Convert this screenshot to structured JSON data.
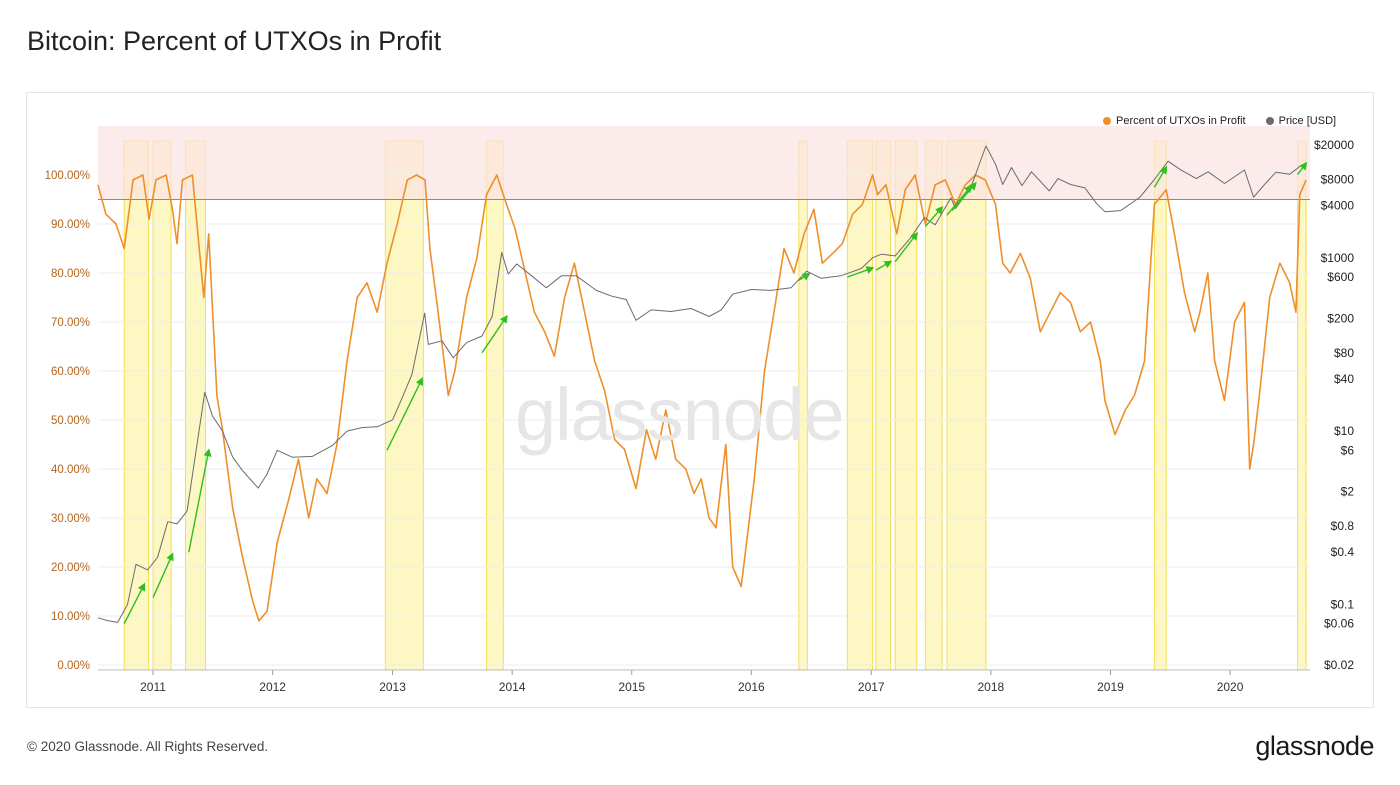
{
  "title": "Bitcoin: Percent of UTXOs in Profit",
  "footer": "© 2020 Glassnode. All Rights Reserved.",
  "brand": "glassnode",
  "watermark": "glassnode",
  "colors": {
    "utxo": "#ef8f2a",
    "price": "#6b6b6b",
    "band_fill": "#fbe3e3",
    "band_line": "#e06a5a",
    "highlight_fill": "#fdf6b8",
    "highlight_stroke": "#f5de4d",
    "arrow": "#2fbf1f",
    "left_axis_text": "#b5651d"
  },
  "chart_data": {
    "type": "line",
    "title": "Bitcoin: Percent of UTXOs in Profit",
    "legend_position": "top-right",
    "legend": [
      "Percent of UTXOs in Profit",
      "Price [USD]"
    ],
    "x_range": [
      "2010-07-17",
      "2020-09-01"
    ],
    "x_ticks": [
      "2011",
      "2012",
      "2013",
      "2014",
      "2015",
      "2016",
      "2017",
      "2018",
      "2019",
      "2020"
    ],
    "y_left": {
      "label": "",
      "range": [
        0,
        100
      ],
      "ticks": [
        "0.00%",
        "10.00%",
        "20.00%",
        "30.00%",
        "40.00%",
        "50.00%",
        "60.00%",
        "70.00%",
        "80.00%",
        "90.00%",
        "100.00%"
      ]
    },
    "y_right": {
      "label": "",
      "scale": "log",
      "range": [
        0.02,
        20000
      ],
      "ticks": [
        "$0.02",
        "$0.06",
        "$0.1",
        "$0.4",
        "$0.8",
        "$2",
        "$6",
        "$10",
        "$40",
        "$80",
        "$200",
        "$600",
        "$1000",
        "$4000",
        "$8000",
        "$20000"
      ],
      "tick_values": [
        0.02,
        0.06,
        0.1,
        0.4,
        0.8,
        2,
        6,
        10,
        40,
        80,
        200,
        600,
        1000,
        4000,
        8000,
        20000
      ]
    },
    "threshold_band": {
      "from": 95,
      "to": 109
    },
    "highlight_periods": [
      [
        "2010-10-05",
        "2010-12-18"
      ],
      [
        "2011-01-01",
        "2011-02-25"
      ],
      [
        "2011-04-10",
        "2011-06-10"
      ],
      [
        "2012-12-10",
        "2013-04-05"
      ],
      [
        "2013-10-15",
        "2013-12-05"
      ],
      [
        "2016-05-25",
        "2016-06-20"
      ],
      [
        "2016-10-20",
        "2017-01-05"
      ],
      [
        "2017-01-15",
        "2017-03-01"
      ],
      [
        "2017-03-15",
        "2017-05-20"
      ],
      [
        "2017-06-15",
        "2017-08-05"
      ],
      [
        "2017-08-20",
        "2017-12-17"
      ],
      [
        "2019-05-15",
        "2019-06-20"
      ],
      [
        "2020-07-25",
        "2020-08-20"
      ]
    ],
    "series": [
      {
        "name": "Percent of UTXOs in Profit",
        "axis": "left",
        "x": [
          "2010-07-17",
          "2010-08-10",
          "2010-09-10",
          "2010-10-05",
          "2010-11-01",
          "2010-12-01",
          "2010-12-20",
          "2011-01-10",
          "2011-02-10",
          "2011-03-01",
          "2011-03-15",
          "2011-04-01",
          "2011-05-01",
          "2011-06-05",
          "2011-06-20",
          "2011-07-15",
          "2011-08-01",
          "2011-09-01",
          "2011-10-01",
          "2011-11-01",
          "2011-11-20",
          "2011-12-15",
          "2012-01-15",
          "2012-02-20",
          "2012-03-20",
          "2012-04-20",
          "2012-05-15",
          "2012-06-15",
          "2012-07-15",
          "2012-08-15",
          "2012-09-15",
          "2012-10-15",
          "2012-11-15",
          "2012-12-15",
          "2013-01-15",
          "2013-02-15",
          "2013-03-15",
          "2013-04-10",
          "2013-04-25",
          "2013-05-20",
          "2013-06-20",
          "2013-07-10",
          "2013-08-15",
          "2013-09-15",
          "2013-10-15",
          "2013-11-15",
          "2013-12-10",
          "2014-01-10",
          "2014-02-10",
          "2014-03-10",
          "2014-04-10",
          "2014-05-10",
          "2014-06-10",
          "2014-07-10",
          "2014-08-10",
          "2014-09-10",
          "2014-10-10",
          "2014-11-10",
          "2014-12-10",
          "2015-01-14",
          "2015-02-15",
          "2015-03-15",
          "2015-04-15",
          "2015-05-15",
          "2015-06-15",
          "2015-07-10",
          "2015-08-01",
          "2015-08-25",
          "2015-09-15",
          "2015-10-15",
          "2015-11-05",
          "2015-12-01",
          "2016-01-10",
          "2016-02-10",
          "2016-03-10",
          "2016-04-10",
          "2016-05-10",
          "2016-06-10",
          "2016-07-10",
          "2016-08-05",
          "2016-09-05",
          "2016-10-05",
          "2016-11-05",
          "2016-12-05",
          "2017-01-05",
          "2017-01-20",
          "2017-02-15",
          "2017-03-20",
          "2017-04-15",
          "2017-05-15",
          "2017-06-15",
          "2017-07-15",
          "2017-08-15",
          "2017-09-15",
          "2017-10-15",
          "2017-11-15",
          "2017-12-15",
          "2018-01-15",
          "2018-02-06",
          "2018-03-01",
          "2018-04-01",
          "2018-05-01",
          "2018-06-01",
          "2018-07-01",
          "2018-08-01",
          "2018-09-01",
          "2018-10-01",
          "2018-11-01",
          "2018-12-01",
          "2018-12-15",
          "2019-01-15",
          "2019-02-15",
          "2019-03-15",
          "2019-04-15",
          "2019-05-15",
          "2019-06-20",
          "2019-07-15",
          "2019-08-15",
          "2019-09-15",
          "2019-10-01",
          "2019-10-25",
          "2019-11-15",
          "2019-12-15",
          "2020-01-15",
          "2020-02-14",
          "2020-03-01",
          "2020-03-13",
          "2020-04-01",
          "2020-05-01",
          "2020-06-01",
          "2020-07-01",
          "2020-07-20",
          "2020-08-01",
          "2020-08-20"
        ],
        "values": [
          98,
          92,
          90,
          85,
          99,
          100,
          91,
          99,
          100,
          93,
          86,
          99,
          100,
          75,
          88,
          55,
          48,
          32,
          22,
          13,
          9,
          11,
          25,
          34,
          42,
          30,
          38,
          35,
          45,
          62,
          75,
          78,
          72,
          82,
          90,
          99,
          100,
          99,
          85,
          72,
          55,
          60,
          75,
          83,
          96,
          100,
          95,
          89,
          80,
          72,
          68,
          63,
          75,
          82,
          72,
          62,
          56,
          46,
          44,
          36,
          48,
          42,
          52,
          42,
          40,
          35,
          38,
          30,
          28,
          45,
          20,
          16,
          38,
          60,
          72,
          85,
          80,
          88,
          93,
          82,
          84,
          86,
          92,
          94,
          100,
          96,
          98,
          88,
          97,
          100,
          90,
          98,
          99,
          94,
          98,
          100,
          99,
          94,
          82,
          80,
          84,
          79,
          68,
          72,
          76,
          74,
          68,
          70,
          62,
          54,
          47,
          52,
          55,
          62,
          94,
          97,
          88,
          76,
          68,
          72,
          80,
          62,
          54,
          70,
          74,
          40,
          45,
          56,
          75,
          82,
          78,
          72,
          96,
          99
        ]
      },
      {
        "name": "Price [USD]",
        "axis": "right",
        "x": [
          "2010-07-17",
          "2010-08-15",
          "2010-09-15",
          "2010-10-15",
          "2010-11-10",
          "2010-12-15",
          "2011-01-15",
          "2011-02-15",
          "2011-03-15",
          "2011-04-15",
          "2011-05-15",
          "2011-06-08",
          "2011-07-01",
          "2011-08-01",
          "2011-09-01",
          "2011-10-01",
          "2011-11-18",
          "2011-12-15",
          "2012-01-15",
          "2012-03-01",
          "2012-05-01",
          "2012-07-01",
          "2012-08-15",
          "2012-10-01",
          "2012-11-15",
          "2013-01-01",
          "2013-02-01",
          "2013-03-01",
          "2013-04-09",
          "2013-04-20",
          "2013-06-01",
          "2013-07-05",
          "2013-08-15",
          "2013-10-01",
          "2013-11-01",
          "2013-11-30",
          "2013-12-20",
          "2014-01-15",
          "2014-03-01",
          "2014-04-15",
          "2014-06-01",
          "2014-07-15",
          "2014-09-15",
          "2014-11-01",
          "2014-12-15",
          "2015-01-14",
          "2015-03-01",
          "2015-05-01",
          "2015-07-01",
          "2015-08-25",
          "2015-10-01",
          "2015-11-05",
          "2016-01-01",
          "2016-03-01",
          "2016-05-01",
          "2016-06-18",
          "2016-08-01",
          "2016-10-01",
          "2016-12-01",
          "2017-01-05",
          "2017-02-01",
          "2017-03-15",
          "2017-05-01",
          "2017-06-12",
          "2017-07-15",
          "2017-09-01",
          "2017-09-15",
          "2017-11-01",
          "2017-12-17",
          "2018-01-15",
          "2018-02-06",
          "2018-03-05",
          "2018-04-06",
          "2018-05-05",
          "2018-06-28",
          "2018-07-25",
          "2018-09-01",
          "2018-10-15",
          "2018-11-20",
          "2018-12-15",
          "2019-02-01",
          "2019-04-01",
          "2019-05-15",
          "2019-06-26",
          "2019-08-01",
          "2019-09-20",
          "2019-10-26",
          "2019-12-15",
          "2020-02-14",
          "2020-03-13",
          "2020-04-15",
          "2020-05-20",
          "2020-07-01",
          "2020-08-01",
          "2020-08-20"
        ],
        "values": [
          0.07,
          0.065,
          0.062,
          0.1,
          0.29,
          0.25,
          0.35,
          0.9,
          0.85,
          1.2,
          7,
          28,
          15,
          10,
          5,
          3.5,
          2.2,
          3.2,
          6,
          5,
          5.1,
          6.8,
          10,
          11,
          11.2,
          13.5,
          25,
          45,
          230,
          100,
          110,
          70,
          105,
          125,
          210,
          1150,
          650,
          850,
          620,
          450,
          620,
          620,
          420,
          360,
          330,
          190,
          250,
          240,
          260,
          210,
          250,
          380,
          430,
          420,
          450,
          700,
          580,
          620,
          750,
          1000,
          1100,
          1050,
          1700,
          2900,
          2400,
          4900,
          3700,
          6500,
          19500,
          12000,
          7000,
          11000,
          6800,
          9800,
          5900,
          8200,
          7000,
          6400,
          4200,
          3400,
          3500,
          5000,
          8000,
          13000,
          10500,
          8200,
          9800,
          7200,
          10300,
          5000,
          7000,
          9700,
          9200,
          11300,
          11900
        ]
      }
    ],
    "annotations": {
      "arrows": [
        {
          "from": [
            "2010-10-05",
            0.06
          ],
          "to": [
            "2010-12-05",
            0.17
          ]
        },
        {
          "from": [
            "2011-01-01",
            0.12
          ],
          "to": [
            "2011-03-01",
            0.38
          ]
        },
        {
          "from": [
            "2011-04-20",
            0.4
          ],
          "to": [
            "2011-06-20",
            6
          ]
        },
        {
          "from": [
            "2012-12-15",
            6
          ],
          "to": [
            "2013-04-01",
            40
          ]
        },
        {
          "from": [
            "2013-10-01",
            80
          ],
          "to": [
            "2013-12-15",
            210
          ]
        },
        {
          "from": [
            "2016-05-25",
            550
          ],
          "to": [
            "2016-06-25",
            650
          ]
        },
        {
          "from": [
            "2016-10-20",
            600
          ],
          "to": [
            "2017-01-05",
            760
          ]
        },
        {
          "from": [
            "2017-01-15",
            720
          ],
          "to": [
            "2017-03-01",
            900
          ]
        },
        {
          "from": [
            "2017-03-15",
            900
          ],
          "to": [
            "2017-05-20",
            1900
          ]
        },
        {
          "from": [
            "2017-06-15",
            2300
          ],
          "to": [
            "2017-08-05",
            3800
          ]
        },
        {
          "from": [
            "2017-08-20",
            3100
          ],
          "to": [
            "2017-11-01",
            6700
          ]
        },
        {
          "from": [
            "2017-09-05",
            3500
          ],
          "to": [
            "2017-11-15",
            7200
          ]
        },
        {
          "from": [
            "2019-05-15",
            6500
          ],
          "to": [
            "2019-06-20",
            11000
          ]
        },
        {
          "from": [
            "2020-07-25",
            9100
          ],
          "to": [
            "2020-08-20",
            12300
          ]
        }
      ]
    }
  }
}
